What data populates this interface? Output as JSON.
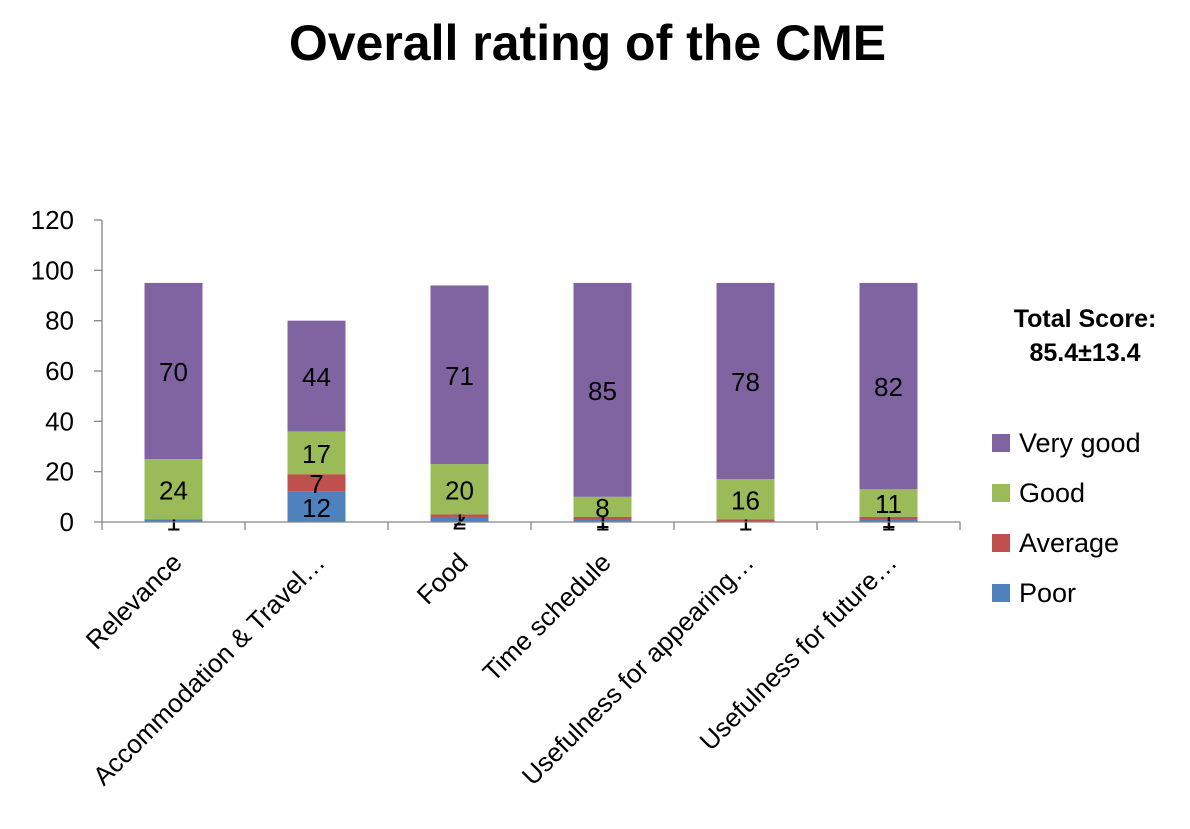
{
  "chart_data": {
    "type": "bar",
    "stacked": true,
    "title": "Overall rating of the CME",
    "categories": [
      "Relevance",
      "Accommodation & Travel…",
      "Food",
      "Time schedule",
      "Usefulness for appearing…",
      "Usefulness for future…"
    ],
    "series": [
      {
        "name": "Poor",
        "color": "#4F81BD",
        "values": [
          1,
          12,
          2,
          1,
          0,
          1
        ],
        "labels": [
          "1",
          "12",
          "2",
          "1",
          "",
          "1"
        ]
      },
      {
        "name": "Average",
        "color": "#C0504D",
        "values": [
          0,
          7,
          1,
          1,
          1,
          1
        ],
        "labels": [
          "",
          "7",
          "1",
          "1",
          "1",
          "1"
        ]
      },
      {
        "name": "Good",
        "color": "#9BBB59",
        "values": [
          24,
          17,
          20,
          8,
          16,
          11
        ],
        "labels": [
          "24",
          "17",
          "20",
          "8",
          "16",
          "11"
        ]
      },
      {
        "name": "Very good",
        "color": "#8064A2",
        "values": [
          70,
          44,
          71,
          85,
          78,
          82
        ],
        "labels": [
          "70",
          "44",
          "71",
          "85",
          "78",
          "82"
        ]
      }
    ],
    "ylim": [
      0,
      120
    ],
    "yticks": [
      "0",
      "20",
      "40",
      "60",
      "80",
      "100",
      "120"
    ],
    "grid": false,
    "legend_position": "right"
  },
  "annotation": {
    "line1": "Total Score:",
    "line2": "85.4±13.4"
  },
  "legend_order": [
    3,
    2,
    1,
    0
  ]
}
